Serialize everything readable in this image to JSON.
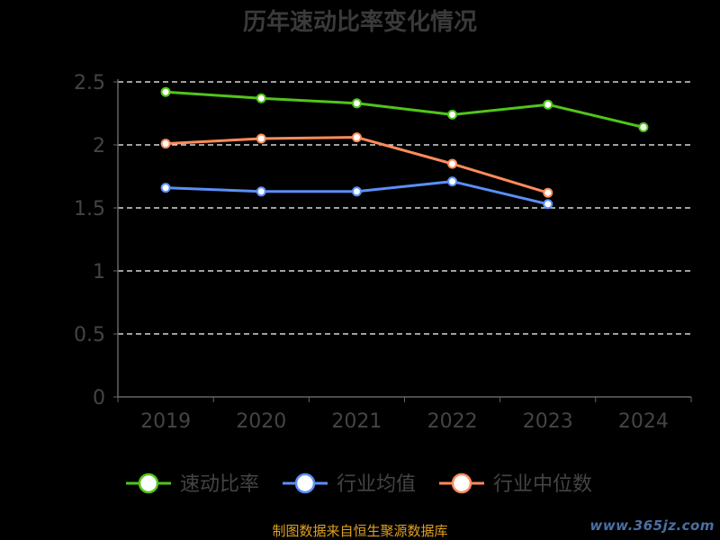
{
  "chart_data": {
    "type": "line",
    "title": "历年速动比率变化情况",
    "x": [
      "2019",
      "2020",
      "2021",
      "2022",
      "2023",
      "2024"
    ],
    "ylim": [
      0,
      2.5
    ],
    "yticks": [
      "0",
      "0.5",
      "1",
      "1.5",
      "2",
      "2.5"
    ],
    "grid": true,
    "legend_position": "bottom",
    "series": [
      {
        "name": "速动比率",
        "color": "#52c41a",
        "values": [
          2.42,
          2.37,
          2.33,
          2.24,
          2.32,
          2.14
        ]
      },
      {
        "name": "行业均值",
        "color": "#5b8ff9",
        "values": [
          1.66,
          1.63,
          1.63,
          1.71,
          1.53,
          null
        ]
      },
      {
        "name": "行业中位数",
        "color": "#ff8c5a",
        "values": [
          2.01,
          2.05,
          2.06,
          1.85,
          1.62,
          null
        ]
      }
    ]
  },
  "footer": {
    "source_text": "制图数据来自恒生聚源数据库",
    "source_color": "#e0a020"
  },
  "watermark": {
    "text": "www.365jz.com",
    "color": "#4a6fa5"
  },
  "colors": {
    "axis": "#666666",
    "grid": "#ffffff",
    "tick_label": "#444444",
    "title": "#3a3a3a"
  }
}
